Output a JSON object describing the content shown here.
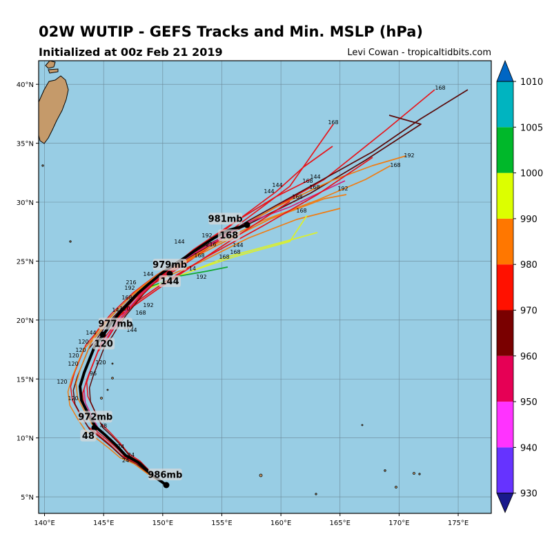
{
  "header": {
    "title": "02W WUTIP - GEFS Tracks and Min. MSLP (hPa)",
    "subtitle": "Initialized at 00z Feb 21 2019",
    "credit": "Levi Cowan - tropicaltidbits.com"
  },
  "map": {
    "lon_range": [
      139.5,
      177.8
    ],
    "lat_range": [
      3.6,
      42.0
    ],
    "lon_ticks": [
      "140°E",
      "145°E",
      "150°E",
      "155°E",
      "160°E",
      "165°E",
      "170°E",
      "175°E"
    ],
    "lat_ticks": [
      "5°N",
      "10°N",
      "15°N",
      "20°N",
      "25°N",
      "30°N",
      "35°N",
      "40°N"
    ],
    "ocean_color": "#98cde4",
    "land_color": "#c59a6a"
  },
  "mean_track": {
    "pressure_labels": [
      {
        "text": "986mb",
        "lon": 150.2,
        "lat": 6.9
      },
      {
        "text": "972mb",
        "lon": 144.3,
        "lat": 11.8
      },
      {
        "text": "977mb",
        "lon": 146.0,
        "lat": 19.7
      },
      {
        "text": "979mb",
        "lon": 150.6,
        "lat": 24.7
      },
      {
        "text": "981mb",
        "lon": 155.3,
        "lat": 28.6
      }
    ],
    "hour_labels": [
      {
        "text": "48",
        "lon": 143.7,
        "lat": 10.2
      },
      {
        "text": "120",
        "lon": 145.0,
        "lat": 18.0
      },
      {
        "text": "144",
        "lon": 150.6,
        "lat": 23.3
      },
      {
        "text": "168",
        "lon": 155.6,
        "lat": 27.2
      }
    ]
  },
  "colorbar": {
    "levels": [
      "930",
      "940",
      "950",
      "960",
      "970",
      "980",
      "990",
      "1000",
      "1005",
      "1010"
    ],
    "colors": [
      "#1a1a8c",
      "#6633ff",
      "#ff33ff",
      "#e60055",
      "#7a0000",
      "#ff1100",
      "#ff7700",
      "#dcff00",
      "#00b82a",
      "#00b4c0",
      "#0066c4"
    ]
  }
}
